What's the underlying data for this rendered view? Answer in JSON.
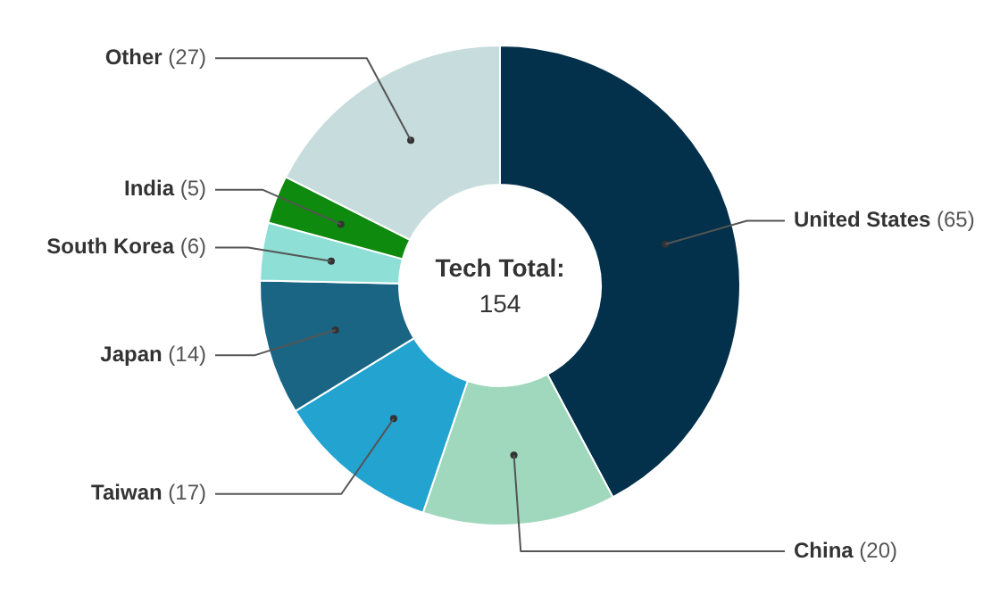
{
  "chart_data": {
    "type": "donut",
    "title": "Tech Total:",
    "annotations": [
      "154"
    ],
    "categories": [
      "United States",
      "China",
      "Taiwan",
      "Japan",
      "South Korea",
      "India",
      "Other"
    ],
    "values": [
      65,
      20,
      17,
      14,
      6,
      5,
      27
    ],
    "colors": [
      "#03304a",
      "#9fd8bd",
      "#22a3d0",
      "#1a6584",
      "#8ee0d6",
      "#0e8a0e",
      "#c7dcdc"
    ],
    "value_labels": [
      "(65)",
      "(20)",
      "(17)",
      "(14)",
      "(6)",
      "(5)",
      "(27)"
    ],
    "legend": false
  }
}
